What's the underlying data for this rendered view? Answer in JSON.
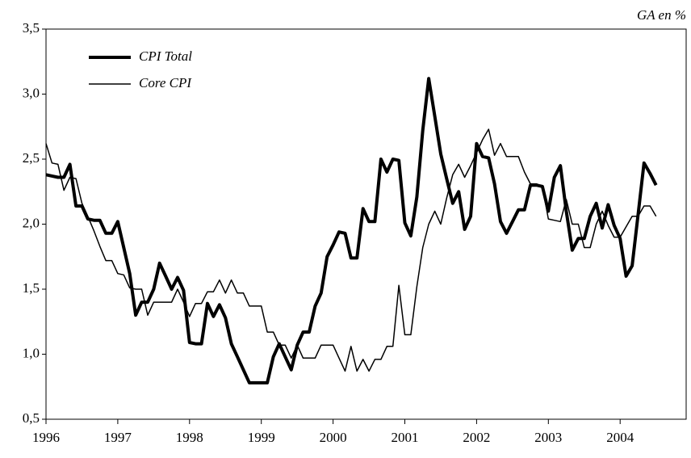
{
  "chart_data": {
    "type": "line",
    "annotation": "GA en %",
    "x": [
      1996,
      1996.083,
      1996.167,
      1996.25,
      1996.333,
      1996.417,
      1996.5,
      1996.583,
      1996.667,
      1996.75,
      1996.833,
      1996.917,
      1997,
      1997.083,
      1997.167,
      1997.25,
      1997.333,
      1997.417,
      1997.5,
      1997.583,
      1997.667,
      1997.75,
      1997.833,
      1997.917,
      1998,
      1998.083,
      1998.167,
      1998.25,
      1998.333,
      1998.417,
      1998.5,
      1998.583,
      1998.667,
      1998.75,
      1998.833,
      1998.917,
      1999,
      1999.083,
      1999.167,
      1999.25,
      1999.333,
      1999.417,
      1999.5,
      1999.583,
      1999.667,
      1999.75,
      1999.833,
      1999.917,
      2000,
      2000.083,
      2000.167,
      2000.25,
      2000.333,
      2000.417,
      2000.5,
      2000.583,
      2000.667,
      2000.75,
      2000.833,
      2000.917,
      2001,
      2001.083,
      2001.167,
      2001.25,
      2001.333,
      2001.417,
      2001.5,
      2001.583,
      2001.667,
      2001.75,
      2001.833,
      2001.917,
      2002,
      2002.083,
      2002.167,
      2002.25,
      2002.333,
      2002.417,
      2002.5,
      2002.583,
      2002.667,
      2002.75,
      2002.833,
      2002.917,
      2003,
      2003.083,
      2003.167,
      2003.25,
      2003.333,
      2003.417,
      2003.5,
      2003.583,
      2003.667,
      2003.75,
      2003.833,
      2003.917,
      2004,
      2004.083,
      2004.167,
      2004.25,
      2004.333,
      2004.417,
      2004.5
    ],
    "series": [
      {
        "name": "CPI Total",
        "color": "#000000",
        "width": 4,
        "values": [
          2.38,
          2.37,
          2.36,
          2.36,
          2.46,
          2.14,
          2.14,
          2.04,
          2.03,
          2.03,
          1.93,
          1.93,
          2.02,
          1.82,
          1.62,
          1.3,
          1.4,
          1.4,
          1.5,
          1.7,
          1.6,
          1.5,
          1.59,
          1.49,
          1.09,
          1.08,
          1.08,
          1.39,
          1.29,
          1.38,
          1.28,
          1.08,
          0.98,
          0.88,
          0.78,
          0.78,
          0.78,
          0.78,
          0.98,
          1.08,
          0.98,
          0.88,
          1.07,
          1.17,
          1.17,
          1.37,
          1.47,
          1.75,
          1.84,
          1.94,
          1.93,
          1.74,
          1.74,
          2.12,
          2.02,
          2.02,
          2.5,
          2.4,
          2.5,
          2.49,
          2.01,
          1.91,
          2.21,
          2.72,
          3.12,
          2.83,
          2.54,
          2.35,
          2.16,
          2.25,
          1.96,
          2.06,
          2.62,
          2.52,
          2.51,
          2.31,
          2.02,
          1.93,
          2.02,
          2.11,
          2.11,
          2.3,
          2.3,
          2.29,
          2.1,
          2.36,
          2.45,
          2.1,
          1.8,
          1.89,
          1.89,
          2.06,
          2.16,
          1.97,
          2.15,
          1.99,
          1.89,
          1.6,
          1.68,
          2.07,
          2.47,
          2.39,
          2.3
        ]
      },
      {
        "name": "Core CPI",
        "color": "#000000",
        "width": 1.5,
        "values": [
          2.62,
          2.47,
          2.46,
          2.26,
          2.36,
          2.35,
          2.16,
          2.06,
          1.95,
          1.83,
          1.72,
          1.72,
          1.62,
          1.61,
          1.51,
          1.5,
          1.5,
          1.3,
          1.4,
          1.4,
          1.4,
          1.4,
          1.5,
          1.4,
          1.29,
          1.39,
          1.39,
          1.48,
          1.48,
          1.57,
          1.47,
          1.57,
          1.47,
          1.47,
          1.37,
          1.37,
          1.37,
          1.17,
          1.17,
          1.07,
          1.07,
          0.97,
          1.07,
          0.97,
          0.97,
          0.97,
          1.07,
          1.07,
          1.07,
          0.97,
          0.87,
          1.06,
          0.87,
          0.96,
          0.87,
          0.96,
          0.96,
          1.06,
          1.06,
          1.53,
          1.15,
          1.15,
          1.52,
          1.82,
          2.0,
          2.1,
          2.0,
          2.2,
          2.38,
          2.46,
          2.36,
          2.45,
          2.55,
          2.65,
          2.73,
          2.53,
          2.62,
          2.52,
          2.52,
          2.52,
          2.4,
          2.31,
          2.31,
          2.29,
          2.04,
          2.03,
          2.02,
          2.19,
          2.0,
          2.0,
          1.82,
          1.82,
          2.0,
          2.1,
          1.99,
          1.9,
          1.9,
          1.98,
          2.06,
          2.06,
          2.14,
          2.14,
          2.06
        ]
      }
    ],
    "xlim": [
      1996,
      2004.92
    ],
    "xticks": [
      1996,
      1997,
      1998,
      1999,
      2000,
      2001,
      2002,
      2003,
      2004
    ],
    "ylim": [
      0.5,
      3.5
    ],
    "yticks": [
      {
        "value": 0.5,
        "label": "0,5"
      },
      {
        "value": 1,
        "label": "1,0"
      },
      {
        "value": 1.5,
        "label": "1,5"
      },
      {
        "value": 2,
        "label": "2,0"
      },
      {
        "value": 2.5,
        "label": "2,5"
      },
      {
        "value": 3,
        "label": "3,0"
      },
      {
        "value": 3.5,
        "label": "3,5"
      }
    ],
    "grid": false,
    "legend": "top-left"
  }
}
